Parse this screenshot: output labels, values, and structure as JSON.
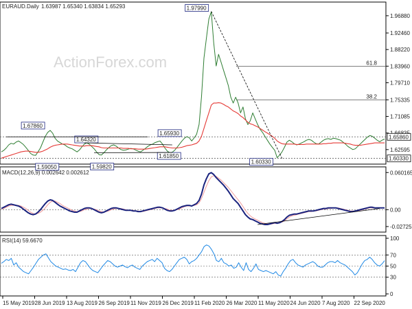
{
  "header": {
    "symbol": "EURAUD.Daily",
    "ohlc": "1.63987 1.65340 1.63834 1.65293",
    "macd_label": "MACD(12,26,9) 0.002642 0.002612",
    "rsi_label": "RSI(14) 59.6670",
    "watermark": "ActionForex.com"
  },
  "colors": {
    "price": "#2e7d32",
    "ema": "#e53935",
    "macd": "#1a237e",
    "signal": "#ef9a9a",
    "rsi": "#1e88e5",
    "trend": "#000000",
    "level": "#555555",
    "axis": "#000000"
  },
  "chart_data": [
    {
      "type": "line",
      "panel": "price",
      "x_labels": [
        "15 May 2019",
        "28 Jun 2019",
        "13 Aug 2019",
        "26 Sep 2019",
        "11 Nov 2019",
        "26 Dec 2019",
        "11 Feb 2020",
        "26 Mar 2020",
        "11 May 2020",
        "24 Jun 2020",
        "7 Aug 2020",
        "22 Sep 2020"
      ],
      "y_ticks": [
        "1.96880",
        "1.92460",
        "1.88220",
        "1.83960",
        "1.79710",
        "1.75335",
        "1.71085",
        "1.66835",
        "1.62595"
      ],
      "ylim": [
        1.594,
        1.995
      ],
      "levels": [
        {
          "label": "61.8",
          "value": 1.8396
        },
        {
          "label": "38.2",
          "value": 1.7534
        },
        {
          "label": "1.65860",
          "value": 1.6586
        },
        {
          "label": "1.60330",
          "value": 1.6033
        }
      ],
      "annotations": [
        "1.97990",
        "1.67860",
        "1.64320",
        "1.59050",
        "1.65930",
        "1.59820",
        "1.61850",
        "1.60330"
      ],
      "series": [
        {
          "values": [
            1.62,
            1.624,
            1.63,
            1.638,
            1.642,
            1.64,
            1.645,
            1.648,
            1.644,
            1.639,
            1.632,
            1.624,
            1.616,
            1.612,
            1.611,
            1.62,
            1.63,
            1.645,
            1.66,
            1.67,
            1.675,
            1.668,
            1.655,
            1.648,
            1.644,
            1.64,
            1.638,
            1.633,
            1.63,
            1.628,
            1.624,
            1.62,
            1.625,
            1.633,
            1.64,
            1.643,
            1.64,
            1.634,
            1.628,
            1.62,
            1.613,
            1.612,
            1.618,
            1.625,
            1.631,
            1.636,
            1.638,
            1.635,
            1.63,
            1.626,
            1.624,
            1.625,
            1.627,
            1.629,
            1.628,
            1.625,
            1.622,
            1.62,
            1.624,
            1.629,
            1.634,
            1.638,
            1.64,
            1.644,
            1.646,
            1.648,
            1.64,
            1.63,
            1.622,
            1.618,
            1.619,
            1.624,
            1.632,
            1.64,
            1.648,
            1.655,
            1.659,
            1.656,
            1.648,
            1.656,
            1.665,
            1.69,
            1.76,
            1.86,
            1.91,
            1.96,
            1.979,
            1.9,
            1.84,
            1.87,
            1.85,
            1.83,
            1.81,
            1.79,
            1.76,
            1.745,
            1.76,
            1.745,
            1.72,
            1.735,
            1.705,
            1.69,
            1.7,
            1.72,
            1.705,
            1.69,
            1.678,
            1.67,
            1.66,
            1.65,
            1.64,
            1.632,
            1.624,
            1.605,
            1.612,
            1.62,
            1.632,
            1.645,
            1.65,
            1.646,
            1.641,
            1.638,
            1.64,
            1.643,
            1.646,
            1.65,
            1.652,
            1.65,
            1.645,
            1.641,
            1.64,
            1.645,
            1.65,
            1.653,
            1.654,
            1.652,
            1.655,
            1.654,
            1.652,
            1.65,
            1.645,
            1.64,
            1.634,
            1.63,
            1.626,
            1.628,
            1.634,
            1.64,
            1.646,
            1.652,
            1.658,
            1.662,
            1.66,
            1.655,
            1.65,
            1.646,
            1.65,
            1.653
          ]
        },
        {
          "values": [
            1.604,
            1.606,
            1.608,
            1.61,
            1.612,
            1.614,
            1.616,
            1.618,
            1.62,
            1.621,
            1.622,
            1.622,
            1.621,
            1.62,
            1.619,
            1.619,
            1.62,
            1.622,
            1.625,
            1.628,
            1.632,
            1.635,
            1.637,
            1.638,
            1.639,
            1.64,
            1.64,
            1.64,
            1.639,
            1.638,
            1.637,
            1.636,
            1.635,
            1.635,
            1.635,
            1.636,
            1.636,
            1.636,
            1.635,
            1.634,
            1.633,
            1.631,
            1.63,
            1.63,
            1.63,
            1.63,
            1.63,
            1.63,
            1.63,
            1.63,
            1.629,
            1.629,
            1.629,
            1.628,
            1.628,
            1.628,
            1.627,
            1.627,
            1.627,
            1.627,
            1.628,
            1.629,
            1.63,
            1.631,
            1.632,
            1.633,
            1.633,
            1.633,
            1.632,
            1.631,
            1.63,
            1.63,
            1.63,
            1.631,
            1.632,
            1.634,
            1.636,
            1.637,
            1.638,
            1.64,
            1.642,
            1.648,
            1.66,
            1.68,
            1.7,
            1.72,
            1.74,
            1.745,
            1.745,
            1.746,
            1.745,
            1.742,
            1.738,
            1.735,
            1.73,
            1.725,
            1.722,
            1.718,
            1.712,
            1.708,
            1.702,
            1.696,
            1.692,
            1.69,
            1.687,
            1.684,
            1.68,
            1.676,
            1.672,
            1.668,
            1.664,
            1.66,
            1.655,
            1.648,
            1.644,
            1.641,
            1.64,
            1.64,
            1.64,
            1.64,
            1.64,
            1.639,
            1.639,
            1.639,
            1.639,
            1.64,
            1.64,
            1.64,
            1.64,
            1.64,
            1.64,
            1.64,
            1.641,
            1.641,
            1.642,
            1.642,
            1.643,
            1.643,
            1.643,
            1.643,
            1.643,
            1.642,
            1.641,
            1.64,
            1.638,
            1.637,
            1.637,
            1.637,
            1.638,
            1.639,
            1.64,
            1.641,
            1.642,
            1.643,
            1.643,
            1.643,
            1.643,
            1.643
          ]
        }
      ]
    },
    {
      "type": "line",
      "panel": "macd",
      "y_ticks": [
        "0.060165",
        "0.00",
        "-0.02725"
      ],
      "ylim": [
        -0.034,
        0.066
      ],
      "series": [
        {
          "values": [
            0.002,
            0.004,
            0.006,
            0.008,
            0.009,
            0.008,
            0.007,
            0.006,
            0.004,
            0.001,
            -0.002,
            -0.005,
            -0.007,
            -0.008,
            -0.007,
            -0.004,
            0.0,
            0.005,
            0.01,
            0.014,
            0.016,
            0.015,
            0.012,
            0.009,
            0.006,
            0.004,
            0.002,
            0.0,
            -0.002,
            -0.003,
            -0.004,
            -0.004,
            -0.002,
            0.0,
            0.002,
            0.003,
            0.003,
            0.002,
            0.0,
            -0.002,
            -0.004,
            -0.005,
            -0.004,
            -0.002,
            0.0,
            0.002,
            0.003,
            0.003,
            0.002,
            0.001,
            0.0,
            -0.001,
            -0.001,
            -0.001,
            -0.002,
            -0.002,
            -0.003,
            -0.003,
            -0.002,
            -0.001,
            0.0,
            0.001,
            0.002,
            0.003,
            0.004,
            0.004,
            0.003,
            0.001,
            -0.001,
            -0.002,
            -0.002,
            -0.001,
            0.001,
            0.003,
            0.005,
            0.006,
            0.007,
            0.007,
            0.006,
            0.008,
            0.01,
            0.015,
            0.025,
            0.04,
            0.05,
            0.058,
            0.06,
            0.057,
            0.052,
            0.048,
            0.044,
            0.04,
            0.035,
            0.03,
            0.024,
            0.018,
            0.014,
            0.01,
            0.004,
            -0.002,
            -0.008,
            -0.012,
            -0.015,
            -0.016,
            -0.018,
            -0.02,
            -0.022,
            -0.023,
            -0.024,
            -0.024,
            -0.023,
            -0.022,
            -0.021,
            -0.022,
            -0.021,
            -0.019,
            -0.016,
            -0.012,
            -0.009,
            -0.008,
            -0.007,
            -0.007,
            -0.006,
            -0.005,
            -0.004,
            -0.003,
            -0.002,
            -0.002,
            -0.002,
            -0.001,
            0.0,
            0.001,
            0.002,
            0.002,
            0.003,
            0.003,
            0.003,
            0.003,
            0.002,
            0.001,
            0.0,
            -0.001,
            -0.002,
            -0.003,
            -0.003,
            -0.002,
            -0.001,
            0.0,
            0.001,
            0.002,
            0.003,
            0.004,
            0.004,
            0.003,
            0.003,
            0.003,
            0.003,
            0.003
          ]
        },
        {
          "values": [
            0.001,
            0.002,
            0.004,
            0.006,
            0.007,
            0.007,
            0.007,
            0.007,
            0.006,
            0.004,
            0.002,
            -0.001,
            -0.004,
            -0.006,
            -0.007,
            -0.006,
            -0.004,
            -0.001,
            0.003,
            0.008,
            0.012,
            0.014,
            0.014,
            0.012,
            0.01,
            0.007,
            0.005,
            0.003,
            0.001,
            -0.001,
            -0.002,
            -0.003,
            -0.003,
            -0.002,
            0.0,
            0.001,
            0.002,
            0.002,
            0.001,
            0.0,
            -0.002,
            -0.003,
            -0.004,
            -0.003,
            -0.002,
            0.0,
            0.001,
            0.002,
            0.002,
            0.002,
            0.001,
            0.0,
            -0.001,
            -0.001,
            -0.001,
            -0.002,
            -0.002,
            -0.003,
            -0.003,
            -0.002,
            -0.001,
            0.0,
            0.001,
            0.002,
            0.003,
            0.003,
            0.003,
            0.002,
            0.001,
            -0.001,
            -0.001,
            -0.001,
            0.0,
            0.001,
            0.003,
            0.005,
            0.006,
            0.006,
            0.006,
            0.007,
            0.008,
            0.011,
            0.018,
            0.028,
            0.038,
            0.047,
            0.053,
            0.055,
            0.054,
            0.051,
            0.048,
            0.044,
            0.04,
            0.036,
            0.031,
            0.026,
            0.021,
            0.016,
            0.011,
            0.005,
            -0.001,
            -0.006,
            -0.01,
            -0.013,
            -0.015,
            -0.017,
            -0.019,
            -0.021,
            -0.022,
            -0.023,
            -0.023,
            -0.023,
            -0.022,
            -0.022,
            -0.021,
            -0.02,
            -0.018,
            -0.015,
            -0.012,
            -0.01,
            -0.009,
            -0.008,
            -0.007,
            -0.006,
            -0.005,
            -0.004,
            -0.003,
            -0.003,
            -0.002,
            -0.002,
            -0.001,
            0.0,
            0.001,
            0.001,
            0.002,
            0.002,
            0.003,
            0.003,
            0.003,
            0.002,
            0.001,
            0.0,
            -0.001,
            -0.002,
            -0.002,
            -0.002,
            -0.002,
            -0.001,
            0.0,
            0.001,
            0.002,
            0.003,
            0.003,
            0.003,
            0.003,
            0.003,
            0.003,
            0.003
          ]
        }
      ]
    },
    {
      "type": "line",
      "panel": "rsi",
      "y_ticks": [
        "100",
        "70",
        "50",
        "30",
        "0"
      ],
      "ylim": [
        0,
        100
      ],
      "series": [
        {
          "values": [
            55,
            58,
            62,
            60,
            64,
            52,
            56,
            48,
            44,
            40,
            38,
            36,
            42,
            48,
            55,
            62,
            66,
            70,
            72,
            65,
            58,
            54,
            50,
            48,
            46,
            44,
            45,
            43,
            42,
            44,
            40,
            48,
            56,
            60,
            58,
            52,
            46,
            42,
            40,
            38,
            44,
            50,
            55,
            60,
            58,
            54,
            50,
            48,
            50,
            52,
            49,
            47,
            50,
            52,
            48,
            46,
            44,
            50,
            54,
            58,
            60,
            62,
            58,
            64,
            60,
            56,
            46,
            42,
            40,
            44,
            50,
            56,
            62,
            64,
            66,
            62,
            54,
            58,
            60,
            64,
            70,
            76,
            85,
            88,
            86,
            80,
            72,
            60,
            58,
            64,
            56,
            54,
            50,
            52,
            46,
            48,
            56,
            48,
            42,
            56,
            44,
            40,
            46,
            54,
            44,
            42,
            40,
            42,
            40,
            38,
            36,
            40,
            34,
            32,
            40,
            46,
            54,
            60,
            62,
            56,
            52,
            50,
            48,
            52,
            54,
            56,
            58,
            55,
            50,
            48,
            48,
            52,
            56,
            58,
            58,
            56,
            60,
            56,
            54,
            52,
            48,
            44,
            40,
            34,
            38,
            46,
            54,
            60,
            62,
            66,
            62,
            56,
            52,
            50,
            54,
            59.7
          ]
        }
      ]
    }
  ]
}
